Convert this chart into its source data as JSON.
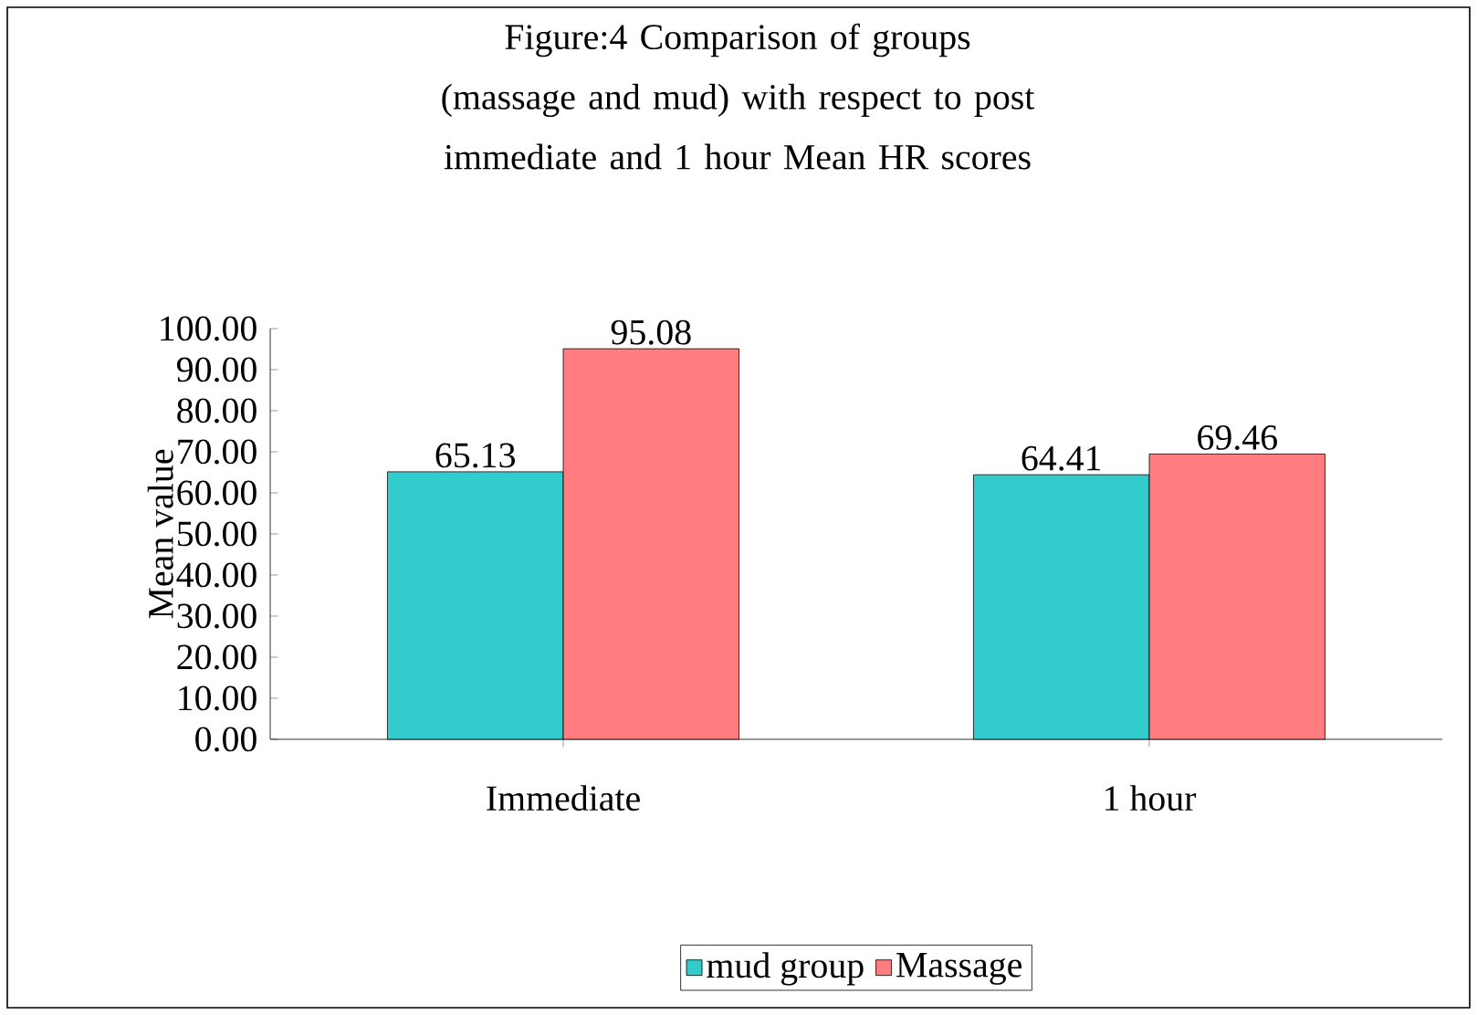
{
  "chart_data": {
    "type": "bar",
    "title": "Figure:4 Comparison of groups (massage and mud) with respect to post immediate and 1 hour Mean HR scores",
    "ylabel": "Mean value",
    "categories": [
      "Immediate",
      "1 hour"
    ],
    "series": [
      {
        "name": "mud group",
        "color": "#33cccc",
        "values": [
          65.13,
          64.41
        ]
      },
      {
        "name": "Massage",
        "color": "#ff7c80",
        "values": [
          95.08,
          69.46
        ]
      }
    ],
    "ylim": [
      0,
      100
    ],
    "yticks": [
      {
        "value": 0,
        "label": "0.00"
      },
      {
        "value": 10,
        "label": "10.00"
      },
      {
        "value": 20,
        "label": "20.00"
      },
      {
        "value": 30,
        "label": "30.00"
      },
      {
        "value": 40,
        "label": "40.00"
      },
      {
        "value": 50,
        "label": "50.00"
      },
      {
        "value": 60,
        "label": "60.00"
      },
      {
        "value": 70,
        "label": "70.00"
      },
      {
        "value": 80,
        "label": "80.00"
      },
      {
        "value": 90,
        "label": "90.00"
      },
      {
        "value": 100,
        "label": "100.00"
      }
    ],
    "data_labels": true,
    "legend": "bottom"
  }
}
